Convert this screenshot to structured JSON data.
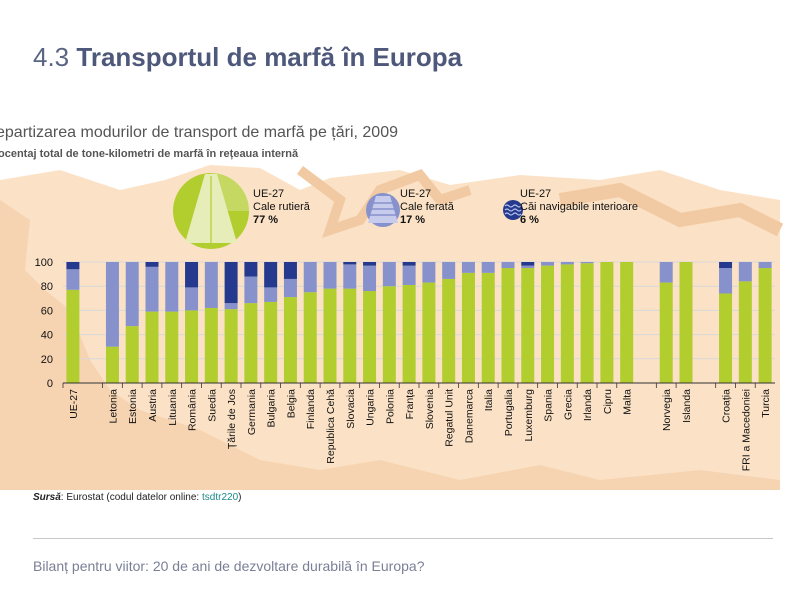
{
  "page": {
    "section_number": "4.3",
    "section_title": "Transportul de marfă în Europa",
    "chart_title": "epartizarea modurilor de transport de marfă pe țări, 2009",
    "chart_subtitle": "ocentaj total de tone-kilometri de marfă în rețeaua internă",
    "source_label": "Sursă",
    "source_text": ": Eurostat (codul datelor online: ",
    "source_code": "tsdtr220",
    "source_end": ")",
    "footer": "Bilanț pentru viitor: 20 de ani de dezvoltare durabilă în Europa?"
  },
  "legend": {
    "road": {
      "region": "UE-27",
      "mode": "Cale rutieră",
      "share": "77 %",
      "icon": "road-icon"
    },
    "rail": {
      "region": "UE-27",
      "mode": "Cale ferată",
      "share": "17 %",
      "icon": "rail-icon"
    },
    "water": {
      "region": "UE-27",
      "mode": "Căi navigabile interioare",
      "share": "6 %",
      "icon": "waterway-icon"
    }
  },
  "colors": {
    "road": "#b2cd2e",
    "rail": "#8792cc",
    "water": "#253a8e",
    "map": "#fbe2c6",
    "grid": "#d8d8d8"
  },
  "chart_data": {
    "type": "bar",
    "stacked": true,
    "ylim": [
      0,
      100
    ],
    "yticks": [
      0,
      20,
      40,
      60,
      80,
      100
    ],
    "grid": true,
    "categories": [
      "UE-27",
      "",
      "Letonia",
      "Estonia",
      "Austria",
      "Lituania",
      "România",
      "Suedia",
      "Țările de Jos",
      "Germania",
      "Bulgaria",
      "Belgia",
      "Finlanda",
      "Republica Cehă",
      "Slovacia",
      "Ungaria",
      "Polonia",
      "Franța",
      "Slovenia",
      "Regatul Unit",
      "Danemarca",
      "Italia",
      "Portugalia",
      "Luxemburg",
      "Spania",
      "Grecia",
      "Irlanda",
      "Cipru",
      "Malta",
      "",
      "Norvegia",
      "Islanda",
      "",
      "Croația",
      "FRI a Macedoniei",
      "Turcia"
    ],
    "series": [
      {
        "name": "Cale rutieră",
        "values": [
          77,
          null,
          30,
          47,
          59,
          59,
          60,
          62,
          61,
          66,
          67,
          71,
          75,
          78,
          78,
          76,
          80,
          81,
          83,
          86,
          91,
          91,
          95,
          95,
          97,
          98,
          99,
          100,
          100,
          null,
          83,
          100,
          null,
          74,
          84,
          95
        ]
      },
      {
        "name": "Cale ferată",
        "values": [
          17,
          null,
          70,
          53,
          37,
          41,
          19,
          38,
          5,
          22,
          12,
          15,
          25,
          22,
          20,
          21,
          20,
          16,
          17,
          14,
          9,
          9,
          5,
          2,
          3,
          2,
          1,
          0,
          0,
          null,
          17,
          0,
          null,
          21,
          16,
          5
        ]
      },
      {
        "name": "Căi navigabile interioare",
        "values": [
          6,
          null,
          0,
          0,
          4,
          0,
          21,
          0,
          34,
          12,
          21,
          14,
          0,
          0,
          2,
          3,
          0,
          3,
          0,
          0,
          0,
          0,
          0,
          3,
          0,
          0,
          0,
          0,
          0,
          null,
          0,
          0,
          null,
          5,
          0,
          0
        ]
      }
    ]
  }
}
